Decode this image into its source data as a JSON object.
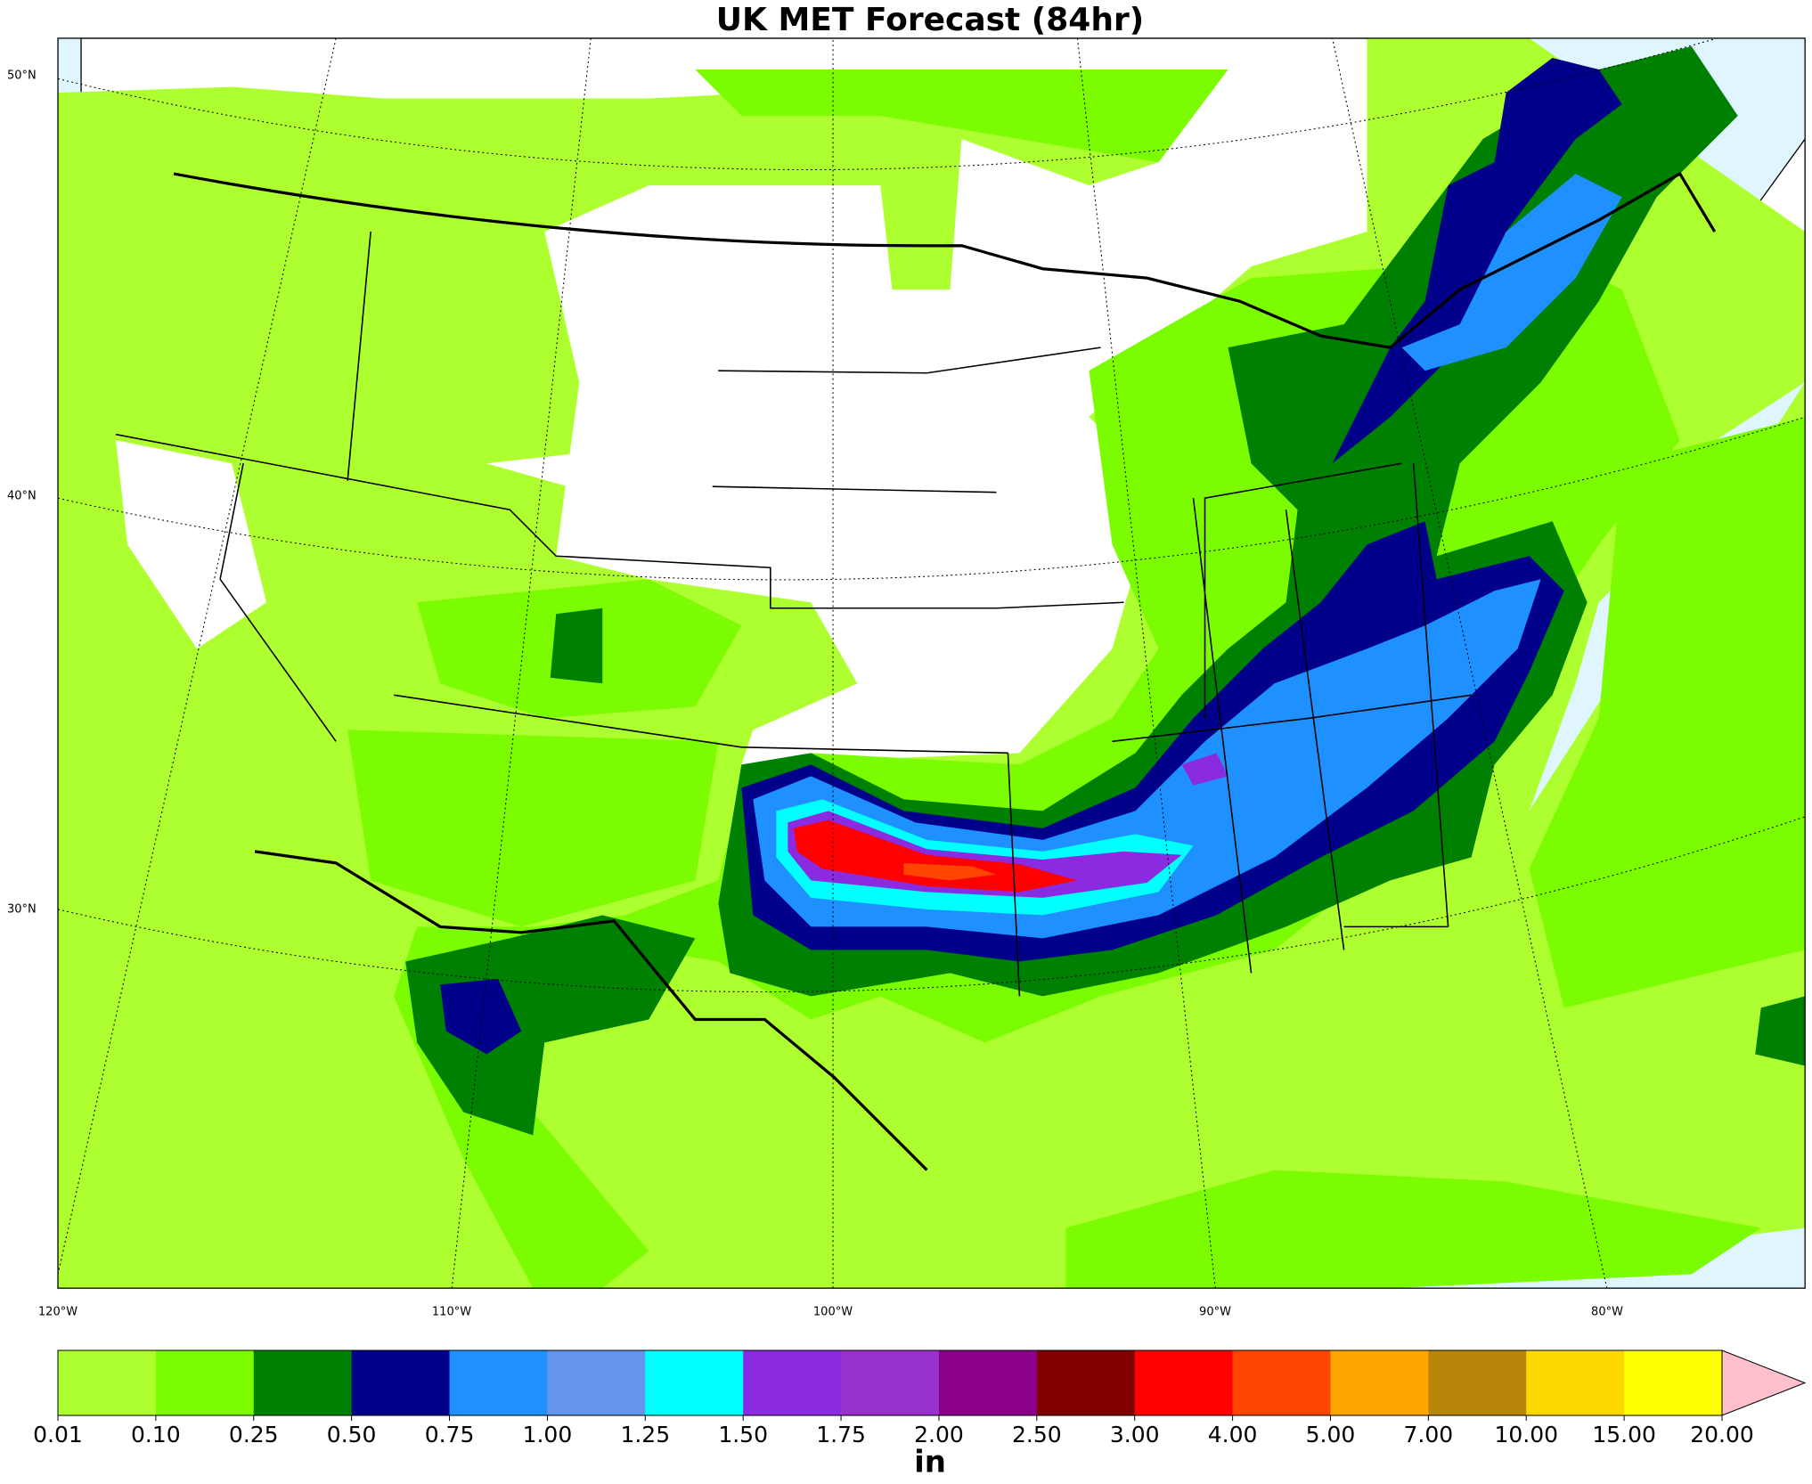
{
  "title": "UK MET Forecast (84hr)",
  "map": {
    "lat_labels": [
      "50°N",
      "40°N",
      "30°N"
    ],
    "lon_labels": [
      "120°W",
      "110°W",
      "100°W",
      "90°W",
      "80°W"
    ]
  },
  "colorbar": {
    "levels": [
      0.01,
      {
        "value": 0.1,
        "label": "0.10"
      },
      0.25,
      {
        "value": 0.5,
        "label": "0.50"
      },
      0.75,
      {
        "value": 1,
        "label": "1.00"
      },
      1.25,
      {
        "value": 1.5,
        "label": "1.50"
      },
      1.75,
      {
        "value": 2,
        "label": "2.00"
      },
      {
        "value": 2.5,
        "label": "2.50"
      },
      {
        "value": 3,
        "label": "3.00"
      },
      {
        "value": 4,
        "label": "4.00"
      },
      {
        "value": 5,
        "label": "5.00"
      },
      {
        "value": 7,
        "label": "7.00"
      },
      {
        "value": 10,
        "label": "10.00"
      },
      {
        "value": 15,
        "label": "15.00"
      },
      {
        "value": 20,
        "label": "20.00"
      }
    ],
    "colors": [
      "#adff2f",
      "#7cfc00",
      "#008000",
      "#00008b",
      "#1e90ff",
      "#6495ed",
      "#00ffff",
      "#8a2be2",
      "#9932cc",
      "#8b008b",
      "#800000",
      "#ff0000",
      "#ff4500",
      "#ffa500",
      "#b8860b",
      "#ffd700",
      "#ffff00"
    ],
    "extend_color": "#ffc0cb",
    "unit": "in"
  }
}
